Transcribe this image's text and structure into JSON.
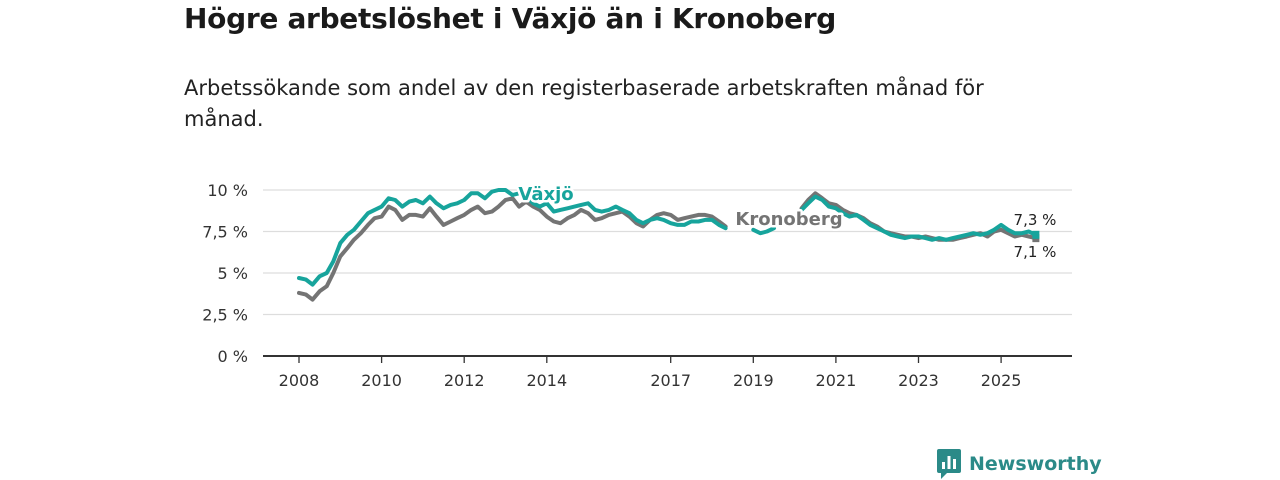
{
  "title": "Högre arbetslöshet i Växjö än i Kronoberg",
  "subtitle": "Arbetssökande som andel av den registerbaserade arbetskraften månad för månad.",
  "brand": {
    "name": "Newsworthy"
  },
  "colors": {
    "vaxjo": "#17a49c",
    "kronoberg": "#747474",
    "grid": "#dddddd",
    "axis": "#333333",
    "brand": "#2b8a88"
  },
  "chart_data": {
    "type": "line",
    "title": "Högre arbetslöshet i Växjö än i Kronoberg",
    "xlabel": "",
    "ylabel": "",
    "x_range": [
      2007.5,
      2026.7
    ],
    "ylim": [
      0,
      10
    ],
    "y_ticks": [
      {
        "value": 0,
        "label": "0 %"
      },
      {
        "value": 2.5,
        "label": "2,5 %"
      },
      {
        "value": 5,
        "label": "5 %"
      },
      {
        "value": 7.5,
        "label": "7,5 %"
      },
      {
        "value": 10,
        "label": "10 %"
      }
    ],
    "x_ticks": [
      {
        "value": 2008,
        "label": "2008"
      },
      {
        "value": 2010,
        "label": "2010"
      },
      {
        "value": 2012,
        "label": "2012"
      },
      {
        "value": 2014,
        "label": "2014"
      },
      {
        "value": 2017,
        "label": "2017"
      },
      {
        "value": 2019,
        "label": "2019"
      },
      {
        "value": 2021,
        "label": "2021"
      },
      {
        "value": 2023,
        "label": "2023"
      },
      {
        "value": 2025,
        "label": "2025"
      }
    ],
    "series": [
      {
        "name": "Kronoberg",
        "color": "#747474",
        "points": [
          [
            2008.0,
            3.8
          ],
          [
            2008.17,
            3.7
          ],
          [
            2008.33,
            3.4
          ],
          [
            2008.5,
            3.9
          ],
          [
            2008.67,
            4.2
          ],
          [
            2008.83,
            5.0
          ],
          [
            2009.0,
            6.0
          ],
          [
            2009.17,
            6.5
          ],
          [
            2009.33,
            7.0
          ],
          [
            2009.5,
            7.4
          ],
          [
            2009.67,
            7.9
          ],
          [
            2009.83,
            8.3
          ],
          [
            2010.0,
            8.4
          ],
          [
            2010.17,
            9.0
          ],
          [
            2010.33,
            8.8
          ],
          [
            2010.5,
            8.2
          ],
          [
            2010.67,
            8.5
          ],
          [
            2010.83,
            8.5
          ],
          [
            2011.0,
            8.4
          ],
          [
            2011.17,
            8.9
          ],
          [
            2011.33,
            8.4
          ],
          [
            2011.5,
            7.9
          ],
          [
            2011.67,
            8.1
          ],
          [
            2011.83,
            8.3
          ],
          [
            2012.0,
            8.5
          ],
          [
            2012.17,
            8.8
          ],
          [
            2012.33,
            9.0
          ],
          [
            2012.5,
            8.6
          ],
          [
            2012.67,
            8.7
          ],
          [
            2012.83,
            9.0
          ],
          [
            2013.0,
            9.4
          ],
          [
            2013.17,
            9.5
          ],
          [
            2013.33,
            9.0
          ],
          [
            2013.5,
            9.3
          ],
          [
            2013.67,
            9.0
          ],
          [
            2013.83,
            8.8
          ],
          [
            2014.0,
            8.4
          ],
          [
            2014.17,
            8.1
          ],
          [
            2014.33,
            8.0
          ],
          [
            2014.5,
            8.3
          ],
          [
            2014.67,
            8.5
          ],
          [
            2014.83,
            8.8
          ],
          [
            2015.0,
            8.6
          ],
          [
            2015.17,
            8.2
          ],
          [
            2015.33,
            8.3
          ],
          [
            2015.5,
            8.5
          ],
          [
            2015.67,
            8.6
          ],
          [
            2015.83,
            8.7
          ],
          [
            2016.0,
            8.4
          ],
          [
            2016.17,
            8.0
          ],
          [
            2016.33,
            7.8
          ],
          [
            2016.5,
            8.2
          ],
          [
            2016.67,
            8.5
          ],
          [
            2016.83,
            8.6
          ],
          [
            2017.0,
            8.5
          ],
          [
            2017.17,
            8.2
          ],
          [
            2017.33,
            8.3
          ],
          [
            2017.5,
            8.4
          ],
          [
            2017.67,
            8.5
          ],
          [
            2017.83,
            8.5
          ],
          [
            2018.0,
            8.4
          ],
          [
            2018.17,
            8.1
          ],
          [
            2018.33,
            7.8
          ]
        ],
        "segment2": [
          [
            2020.17,
            8.9
          ],
          [
            2020.33,
            9.4
          ],
          [
            2020.5,
            9.8
          ],
          [
            2020.67,
            9.5
          ],
          [
            2020.83,
            9.2
          ],
          [
            2021.0,
            9.1
          ],
          [
            2021.17,
            8.8
          ],
          [
            2021.33,
            8.6
          ],
          [
            2021.5,
            8.5
          ],
          [
            2021.67,
            8.3
          ],
          [
            2021.83,
            8.0
          ],
          [
            2022.0,
            7.8
          ],
          [
            2022.17,
            7.5
          ],
          [
            2022.33,
            7.4
          ],
          [
            2022.5,
            7.3
          ],
          [
            2022.67,
            7.2
          ],
          [
            2022.83,
            7.2
          ],
          [
            2023.0,
            7.1
          ],
          [
            2023.17,
            7.2
          ],
          [
            2023.33,
            7.1
          ],
          [
            2023.5,
            7.0
          ],
          [
            2023.67,
            7.0
          ],
          [
            2023.83,
            7.0
          ],
          [
            2024.0,
            7.1
          ],
          [
            2024.17,
            7.2
          ],
          [
            2024.33,
            7.3
          ],
          [
            2024.5,
            7.4
          ],
          [
            2024.67,
            7.2
          ],
          [
            2024.83,
            7.5
          ],
          [
            2025.0,
            7.6
          ],
          [
            2025.17,
            7.4
          ],
          [
            2025.33,
            7.2
          ],
          [
            2025.5,
            7.3
          ],
          [
            2025.67,
            7.2
          ],
          [
            2025.83,
            7.1
          ]
        ],
        "label": "Kronoberg",
        "end_label": "7,1 %"
      },
      {
        "name": "Växjö",
        "color": "#17a49c",
        "points": [
          [
            2008.0,
            4.7
          ],
          [
            2008.17,
            4.6
          ],
          [
            2008.33,
            4.3
          ],
          [
            2008.5,
            4.8
          ],
          [
            2008.67,
            5.0
          ],
          [
            2008.83,
            5.7
          ],
          [
            2009.0,
            6.8
          ],
          [
            2009.17,
            7.3
          ],
          [
            2009.33,
            7.6
          ],
          [
            2009.5,
            8.1
          ],
          [
            2009.67,
            8.6
          ],
          [
            2009.83,
            8.8
          ],
          [
            2010.0,
            9.0
          ],
          [
            2010.17,
            9.5
          ],
          [
            2010.33,
            9.4
          ],
          [
            2010.5,
            9.0
          ],
          [
            2010.67,
            9.3
          ],
          [
            2010.83,
            9.4
          ],
          [
            2011.0,
            9.2
          ],
          [
            2011.17,
            9.6
          ],
          [
            2011.33,
            9.2
          ],
          [
            2011.5,
            8.9
          ],
          [
            2011.67,
            9.1
          ],
          [
            2011.83,
            9.2
          ],
          [
            2012.0,
            9.4
          ],
          [
            2012.17,
            9.8
          ],
          [
            2012.33,
            9.8
          ],
          [
            2012.5,
            9.5
          ],
          [
            2012.67,
            9.9
          ],
          [
            2012.83,
            10.0
          ],
          [
            2013.0,
            10.0
          ],
          [
            2013.17,
            9.7
          ],
          [
            2013.33,
            9.8
          ],
          [
            2013.5,
            9.6
          ],
          [
            2013.67,
            9.2
          ],
          [
            2013.83,
            9.0
          ],
          [
            2014.0,
            9.2
          ],
          [
            2014.17,
            8.7
          ],
          [
            2014.33,
            8.8
          ],
          [
            2014.5,
            8.9
          ],
          [
            2014.67,
            9.0
          ],
          [
            2014.83,
            9.1
          ],
          [
            2015.0,
            9.2
          ],
          [
            2015.17,
            8.8
          ],
          [
            2015.33,
            8.7
          ],
          [
            2015.5,
            8.8
          ],
          [
            2015.67,
            9.0
          ],
          [
            2015.83,
            8.8
          ],
          [
            2016.0,
            8.6
          ],
          [
            2016.17,
            8.2
          ],
          [
            2016.33,
            8.0
          ],
          [
            2016.5,
            8.2
          ],
          [
            2016.67,
            8.3
          ],
          [
            2016.83,
            8.2
          ],
          [
            2017.0,
            8.0
          ],
          [
            2017.17,
            7.9
          ],
          [
            2017.33,
            7.9
          ],
          [
            2017.5,
            8.1
          ],
          [
            2017.67,
            8.1
          ],
          [
            2017.83,
            8.2
          ],
          [
            2018.0,
            8.2
          ],
          [
            2018.17,
            7.9
          ],
          [
            2018.33,
            7.7
          ]
        ],
        "segment2": [
          [
            2019.0,
            7.6
          ],
          [
            2019.17,
            7.4
          ],
          [
            2019.33,
            7.5
          ],
          [
            2019.5,
            7.7
          ]
        ],
        "segment3": [
          [
            2020.17,
            8.8
          ],
          [
            2020.33,
            9.2
          ],
          [
            2020.5,
            9.6
          ],
          [
            2020.67,
            9.4
          ],
          [
            2020.83,
            9.0
          ],
          [
            2021.0,
            8.9
          ],
          [
            2021.17,
            8.6
          ],
          [
            2021.33,
            8.4
          ],
          [
            2021.5,
            8.5
          ],
          [
            2021.67,
            8.2
          ],
          [
            2021.83,
            7.9
          ],
          [
            2022.0,
            7.7
          ],
          [
            2022.17,
            7.5
          ],
          [
            2022.33,
            7.3
          ],
          [
            2022.5,
            7.2
          ],
          [
            2022.67,
            7.1
          ],
          [
            2022.83,
            7.2
          ],
          [
            2023.0,
            7.2
          ],
          [
            2023.17,
            7.1
          ],
          [
            2023.33,
            7.0
          ],
          [
            2023.5,
            7.1
          ],
          [
            2023.67,
            7.0
          ],
          [
            2023.83,
            7.1
          ],
          [
            2024.0,
            7.2
          ],
          [
            2024.17,
            7.3
          ],
          [
            2024.33,
            7.4
          ],
          [
            2024.5,
            7.3
          ],
          [
            2024.67,
            7.4
          ],
          [
            2024.83,
            7.6
          ],
          [
            2025.0,
            7.9
          ],
          [
            2025.17,
            7.6
          ],
          [
            2025.33,
            7.4
          ],
          [
            2025.5,
            7.4
          ],
          [
            2025.67,
            7.5
          ],
          [
            2025.83,
            7.3
          ]
        ],
        "label": "Växjö",
        "end_label": "7,3 %"
      }
    ]
  }
}
